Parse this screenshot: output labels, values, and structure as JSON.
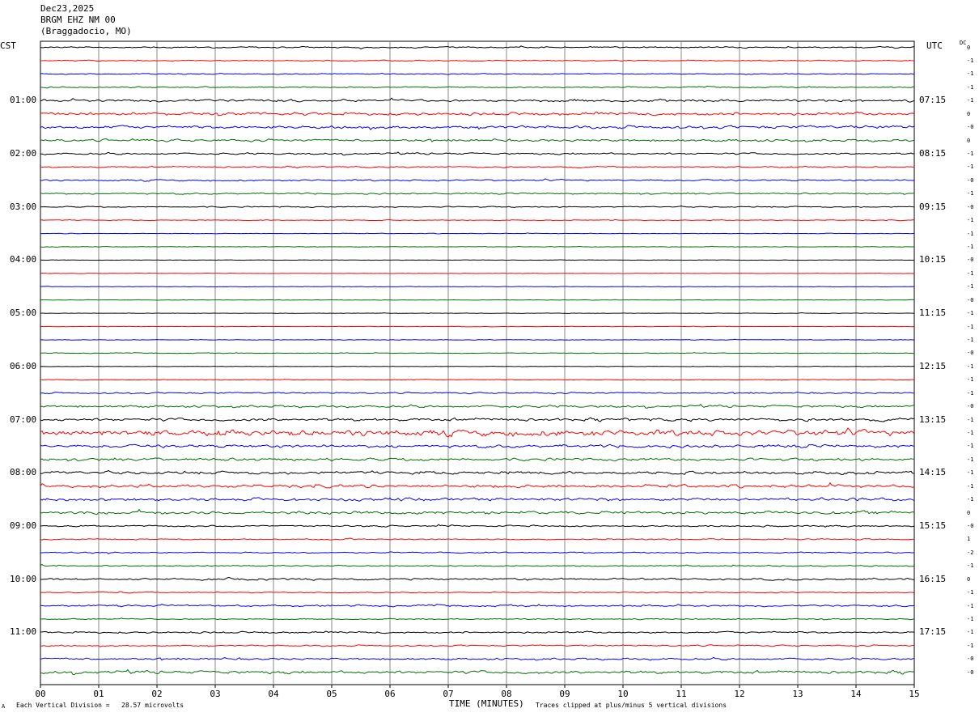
{
  "header": {
    "date": "Dec23,2025",
    "station": "BRGM EHZ NM 00",
    "location": "(Braggadocio, MO)"
  },
  "left_tz": "CST",
  "right_tz": "UTC",
  "dc_label": "DC",
  "footer": {
    "scale_mark": "A",
    "scale": "Each Vertical Division =   28.57 microvolts",
    "xlabel": "TIME (MINUTES)",
    "clip_note": "Traces clipped at plus/minus 5 vertical divisions"
  },
  "chart_data": {
    "type": "line",
    "title": "BRGM EHZ NM 00",
    "xlabel": "TIME (MINUTES)",
    "xlim": [
      0,
      15
    ],
    "x_ticks": [
      "00",
      "01",
      "02",
      "03",
      "04",
      "05",
      "06",
      "07",
      "08",
      "09",
      "10",
      "11",
      "12",
      "13",
      "14",
      "15"
    ],
    "trace_count": 48,
    "trace_colors": [
      "#000000",
      "#ff0000",
      "#0000ff",
      "#007000"
    ],
    "left_hour_labels": [
      "01:00",
      "02:00",
      "03:00",
      "04:00",
      "05:00",
      "06:00",
      "07:00",
      "08:00",
      "09:00",
      "10:00",
      "11:00"
    ],
    "right_hour_labels": [
      "07:15",
      "08:15",
      "09:15",
      "10:15",
      "11:15",
      "12:15",
      "13:15",
      "14:15",
      "15:15",
      "16:15",
      "17:15"
    ],
    "dc_offsets": [
      "0",
      "-1",
      "-1",
      "-1",
      "-1",
      "0",
      "-0",
      "0",
      "-1",
      "-1",
      "-0",
      "-1",
      "-0",
      "-1",
      "-1",
      "-1",
      "-0",
      "-1",
      "-1",
      "-0",
      "-1",
      "-1",
      "-1",
      "-0",
      "-1",
      "-1",
      "-1",
      "-0",
      "-1",
      "-1",
      "-1",
      "-1",
      "-1",
      "-1",
      "-1",
      "0",
      "-0",
      "1",
      "-2",
      "-1",
      "0",
      "-1",
      "-1",
      "-1",
      "-1",
      "-1",
      "-0",
      "-0"
    ],
    "trace_activity": [
      1.2,
      0.9,
      0.9,
      1.1,
      2.3,
      2.6,
      2.6,
      2.1,
      1.6,
      1.3,
      1.4,
      1.3,
      1.0,
      0.7,
      0.5,
      0.5,
      0.4,
      0.4,
      0.4,
      0.4,
      0.4,
      0.4,
      0.5,
      0.6,
      0.4,
      0.7,
      1.3,
      2.0,
      2.6,
      5.0,
      2.6,
      2.4,
      2.6,
      2.7,
      2.6,
      2.7,
      1.4,
      1.0,
      1.1,
      1.1,
      1.6,
      0.9,
      1.6,
      1.0,
      1.6,
      1.2,
      1.8,
      2.6
    ]
  }
}
